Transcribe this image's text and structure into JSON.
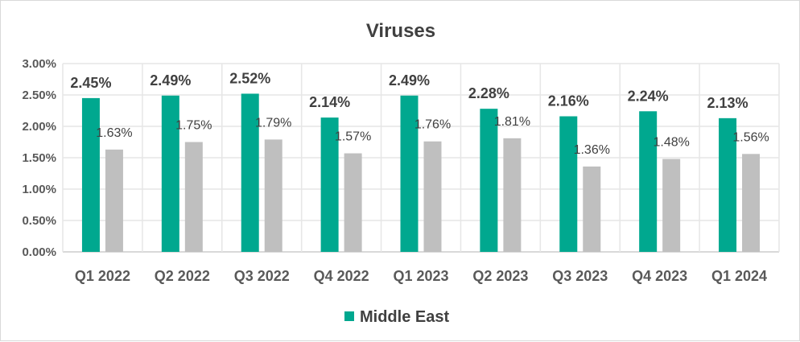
{
  "chart_data": {
    "type": "bar",
    "title": "Viruses",
    "xlabel": "",
    "ylabel": "",
    "ylim": [
      0,
      0.03
    ],
    "yticks": [
      "0.00%",
      "0.50%",
      "1.00%",
      "1.50%",
      "2.00%",
      "2.50%",
      "3.00%"
    ],
    "grid": true,
    "legend_placement": "bottom",
    "categories": [
      "Q1 2022",
      "Q2 2022",
      "Q3 2022",
      "Q4 2022",
      "Q1 2023",
      "Q2 2023",
      "Q3 2023",
      "Q4 2023",
      "Q1 2024"
    ],
    "series": [
      {
        "name": "Middle East",
        "color": "#00A88F",
        "in_legend": true,
        "values": [
          0.0245,
          0.0249,
          0.0252,
          0.0214,
          0.0249,
          0.0228,
          0.0216,
          0.0224,
          0.0213
        ],
        "labels": [
          "2.45%",
          "2.49%",
          "2.52%",
          "2.14%",
          "2.49%",
          "2.28%",
          "2.16%",
          "2.24%",
          "2.13%"
        ]
      },
      {
        "name": "",
        "color": "#BFBFBF",
        "in_legend": false,
        "values": [
          0.0163,
          0.0175,
          0.0179,
          0.0157,
          0.0176,
          0.0181,
          0.0136,
          0.0148,
          0.0156
        ],
        "labels": [
          "1.63%",
          "1.75%",
          "1.79%",
          "1.57%",
          "1.76%",
          "1.81%",
          "1.36%",
          "1.48%",
          "1.56%"
        ]
      }
    ]
  }
}
